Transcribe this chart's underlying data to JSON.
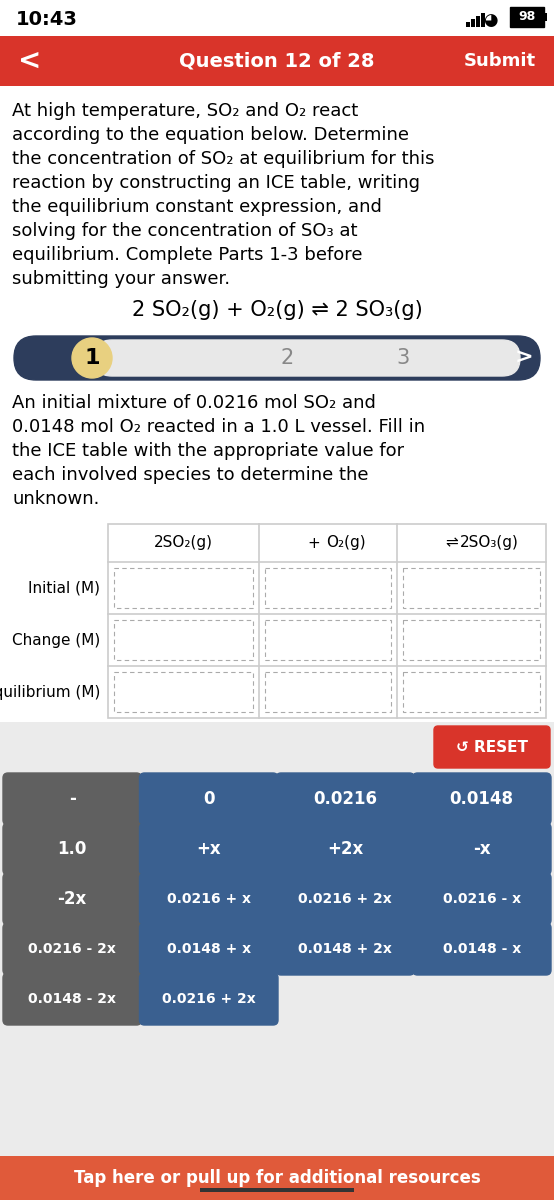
{
  "time": "10:43",
  "battery": "98",
  "nav_title": "Question 12 of 28",
  "nav_submit": "Submit",
  "nav_bg": "#d9342a",
  "body_bg": "#ffffff",
  "intro_text_lines": [
    "At high temperature, SO₂ and O₂ react",
    "according to the equation below. Determine",
    "the concentration of SO₂ at equilibrium for this",
    "reaction by constructing an ICE table, writing",
    "the equilibrium constant expression, and",
    "solving for the concentration of SO₃ at",
    "equilibrium. Complete Parts 1-3 before",
    "submitting your answer."
  ],
  "equation": "2 SO₂(g) + O₂(g) ⇌ 2 SO₃(g)",
  "sub_text_lines": [
    "An initial mixture of 0.0216 mol SO₂ and",
    "0.0148 mol O₂ reacted in a 1.0 L vessel. Fill in",
    "the ICE table with the appropriate value for",
    "each involved species to determine the",
    "unknown."
  ],
  "table_header_parts": [
    "2SO₂(g)",
    "+",
    "O₂(g)",
    "⇌",
    "2SO₃(g)"
  ],
  "row_labels": [
    "Initial (M)",
    "Change (M)",
    "Equilibrium (M)"
  ],
  "reset_text": "↺ RESET",
  "bottom_bar_color": "#e05a3a",
  "bottom_bar_text": "Tap here or pull up for additional resources",
  "btn_dark_gray": "#606060",
  "btn_blue": "#3a6090",
  "btn_text_white": "#ffffff",
  "pill_nav_bg": "#2d3d5c",
  "pill_active_color": "#e8d080",
  "pill_inner_bg": "#e8e8e8",
  "buttons": [
    [
      "-",
      "0",
      "0.0216",
      "0.0148"
    ],
    [
      "1.0",
      "+x",
      "+2x",
      "-x"
    ],
    [
      "-2x",
      "0.0216 + x",
      "0.0216 + 2x",
      "0.0216 - x"
    ],
    [
      "0.0216 - 2x",
      "0.0148 + x",
      "0.0148 + 2x",
      "0.0148 - x"
    ],
    [
      "0.0148 - 2x",
      "0.0216 + 2x",
      "",
      ""
    ]
  ],
  "btn_col0_color": "#606060",
  "btn_col1plus_color": "#3a6090"
}
